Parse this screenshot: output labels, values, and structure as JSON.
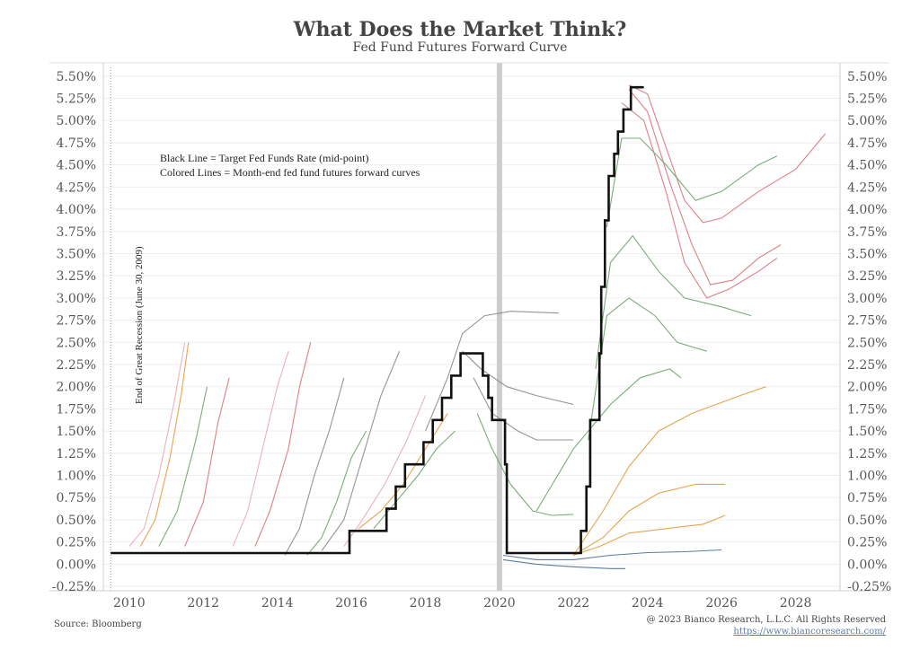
{
  "header": {
    "title": "What Does the Market Think?",
    "subtitle": "Fed Fund Futures Forward Curve"
  },
  "annotations": {
    "legend_line1": "Black Line = Target Fed Funds Rate (mid-point)",
    "legend_line2": "Colored Lines = Month-end fed fund futures forward curves",
    "recession_label": "End of Great Recession (June 30, 2009)"
  },
  "footer": {
    "source": "Source: Bloomberg",
    "copyright": "@ 2023 Bianco Research, L.L.C. All Rights Reserved",
    "link": "https://www.biancoresearch.com/"
  },
  "colors": {
    "target_line": "#111111",
    "red_curves": "#d9727a",
    "green_curves": "#6aa36a",
    "orange_curves": "#e39a3e",
    "blue_curves": "#4a6f95",
    "pink_curves": "#e8a9b6",
    "gray_curves": "#8a8a8a",
    "covid_band": "#cccccc"
  },
  "chart_data": {
    "type": "line",
    "title": "What Does the Market Think?",
    "subtitle": "Fed Fund Futures Forward Curve",
    "xlim": [
      2009.3,
      2029.2
    ],
    "ylim": [
      -0.3,
      5.65
    ],
    "x_ticks": [
      2010,
      2012,
      2014,
      2016,
      2018,
      2020,
      2022,
      2024,
      2026,
      2028
    ],
    "y_ticks": [
      -0.25,
      0,
      0.25,
      0.5,
      0.75,
      1.0,
      1.25,
      1.5,
      1.75,
      2.0,
      2.25,
      2.5,
      2.75,
      3.0,
      3.25,
      3.5,
      3.75,
      4.0,
      4.25,
      4.5,
      4.75,
      5.0,
      5.25,
      5.5
    ],
    "y_tick_labels": [
      "-0.25%",
      "0.00%",
      "0.25%",
      "0.50%",
      "0.75%",
      "1.00%",
      "1.25%",
      "1.50%",
      "1.75%",
      "2.00%",
      "2.25%",
      "2.50%",
      "2.75%",
      "3.00%",
      "3.25%",
      "3.50%",
      "3.75%",
      "4.00%",
      "4.25%",
      "4.50%",
      "4.75%",
      "5.00%",
      "5.25%",
      "5.50%"
    ],
    "vertical_markers": [
      {
        "x": 2009.5,
        "style": "dotted",
        "label": "End of Great Recession (June 30, 2009)"
      },
      {
        "x": 2020.0,
        "style": "band"
      }
    ],
    "target_rate": {
      "name": "Target Fed Funds Rate (mid-point)",
      "points": [
        [
          2009.5,
          0.125
        ],
        [
          2015.95,
          0.125
        ],
        [
          2015.95,
          0.375
        ],
        [
          2016.95,
          0.375
        ],
        [
          2016.95,
          0.625
        ],
        [
          2017.2,
          0.625
        ],
        [
          2017.2,
          0.875
        ],
        [
          2017.45,
          0.875
        ],
        [
          2017.45,
          1.125
        ],
        [
          2017.95,
          1.125
        ],
        [
          2017.95,
          1.375
        ],
        [
          2018.2,
          1.375
        ],
        [
          2018.2,
          1.625
        ],
        [
          2018.45,
          1.625
        ],
        [
          2018.45,
          1.875
        ],
        [
          2018.7,
          1.875
        ],
        [
          2018.7,
          2.125
        ],
        [
          2018.95,
          2.125
        ],
        [
          2018.95,
          2.375
        ],
        [
          2019.55,
          2.375
        ],
        [
          2019.55,
          2.125
        ],
        [
          2019.7,
          2.125
        ],
        [
          2019.7,
          1.875
        ],
        [
          2019.8,
          1.875
        ],
        [
          2019.8,
          1.625
        ],
        [
          2020.15,
          1.625
        ],
        [
          2020.15,
          1.125
        ],
        [
          2020.2,
          1.125
        ],
        [
          2020.2,
          0.125
        ],
        [
          2022.2,
          0.125
        ],
        [
          2022.2,
          0.375
        ],
        [
          2022.35,
          0.375
        ],
        [
          2022.35,
          0.875
        ],
        [
          2022.45,
          0.875
        ],
        [
          2022.45,
          1.625
        ],
        [
          2022.7,
          1.625
        ],
        [
          2022.7,
          2.375
        ],
        [
          2022.75,
          2.375
        ],
        [
          2022.75,
          3.125
        ],
        [
          2022.85,
          3.125
        ],
        [
          2022.85,
          3.875
        ],
        [
          2022.95,
          3.875
        ],
        [
          2022.95,
          4.375
        ],
        [
          2023.1,
          4.375
        ],
        [
          2023.1,
          4.625
        ],
        [
          2023.2,
          4.625
        ],
        [
          2023.2,
          4.875
        ],
        [
          2023.35,
          4.875
        ],
        [
          2023.35,
          5.125
        ],
        [
          2023.55,
          5.125
        ],
        [
          2023.55,
          5.375
        ],
        [
          2023.9,
          5.375
        ]
      ]
    },
    "forward_curves_sample": [
      {
        "color": "red",
        "points": [
          [
            2023.5,
            5.4
          ],
          [
            2024.0,
            5.3
          ],
          [
            2024.5,
            4.7
          ],
          [
            2025.0,
            4.1
          ],
          [
            2025.5,
            3.85
          ],
          [
            2026.0,
            3.9
          ],
          [
            2027.0,
            4.2
          ],
          [
            2028.0,
            4.45
          ],
          [
            2028.8,
            4.85
          ]
        ]
      },
      {
        "color": "red",
        "points": [
          [
            2023.5,
            5.35
          ],
          [
            2024.0,
            5.1
          ],
          [
            2024.6,
            4.3
          ],
          [
            2025.2,
            3.6
          ],
          [
            2025.7,
            3.15
          ],
          [
            2026.3,
            3.2
          ],
          [
            2027.0,
            3.45
          ],
          [
            2027.6,
            3.6
          ]
        ]
      },
      {
        "color": "red",
        "points": [
          [
            2023.3,
            5.2
          ],
          [
            2023.9,
            5.0
          ],
          [
            2024.5,
            4.2
          ],
          [
            2025.0,
            3.4
          ],
          [
            2025.6,
            3.0
          ],
          [
            2026.2,
            3.1
          ],
          [
            2027.0,
            3.3
          ],
          [
            2027.5,
            3.45
          ]
        ]
      },
      {
        "color": "green",
        "points": [
          [
            2022.9,
            3.8
          ],
          [
            2023.3,
            4.8
          ],
          [
            2023.8,
            4.8
          ],
          [
            2024.5,
            4.5
          ],
          [
            2025.3,
            4.1
          ],
          [
            2026.0,
            4.2
          ],
          [
            2027.0,
            4.5
          ],
          [
            2027.5,
            4.6
          ]
        ]
      },
      {
        "color": "green",
        "points": [
          [
            2022.6,
            2.2
          ],
          [
            2023.0,
            3.4
          ],
          [
            2023.6,
            3.7
          ],
          [
            2024.3,
            3.3
          ],
          [
            2025.0,
            3.0
          ],
          [
            2026.0,
            2.9
          ],
          [
            2026.8,
            2.8
          ]
        ]
      },
      {
        "color": "green",
        "points": [
          [
            2022.4,
            1.4
          ],
          [
            2022.9,
            2.8
          ],
          [
            2023.5,
            3.0
          ],
          [
            2024.2,
            2.8
          ],
          [
            2024.8,
            2.5
          ],
          [
            2025.6,
            2.4
          ]
        ]
      },
      {
        "color": "green",
        "points": [
          [
            2021.0,
            0.6
          ],
          [
            2022.0,
            1.3
          ],
          [
            2023.0,
            1.8
          ],
          [
            2023.8,
            2.1
          ],
          [
            2024.6,
            2.2
          ],
          [
            2024.9,
            2.1
          ]
        ]
      },
      {
        "color": "orange",
        "points": [
          [
            2022.0,
            0.1
          ],
          [
            2022.8,
            0.6
          ],
          [
            2023.5,
            1.1
          ],
          [
            2024.3,
            1.5
          ],
          [
            2025.2,
            1.7
          ],
          [
            2026.5,
            1.9
          ],
          [
            2027.2,
            2.0
          ]
        ]
      },
      {
        "color": "orange",
        "points": [
          [
            2022.0,
            0.1
          ],
          [
            2022.8,
            0.3
          ],
          [
            2023.5,
            0.6
          ],
          [
            2024.3,
            0.8
          ],
          [
            2025.3,
            0.9
          ],
          [
            2026.1,
            0.9
          ]
        ]
      },
      {
        "color": "orange",
        "points": [
          [
            2022.0,
            0.1
          ],
          [
            2022.7,
            0.2
          ],
          [
            2023.5,
            0.35
          ],
          [
            2024.5,
            0.4
          ],
          [
            2025.5,
            0.45
          ],
          [
            2026.1,
            0.55
          ]
        ]
      },
      {
        "color": "blue",
        "points": [
          [
            2020.1,
            0.1
          ],
          [
            2021.0,
            0.05
          ],
          [
            2022.0,
            0.05
          ],
          [
            2023.0,
            0.1
          ],
          [
            2024.0,
            0.13
          ],
          [
            2025.0,
            0.14
          ],
          [
            2026.0,
            0.16
          ]
        ]
      },
      {
        "color": "blue",
        "points": [
          [
            2020.1,
            0.05
          ],
          [
            2021.0,
            0.0
          ],
          [
            2022.0,
            -0.03
          ],
          [
            2023.0,
            -0.05
          ],
          [
            2023.4,
            -0.05
          ]
        ]
      },
      {
        "color": "gray",
        "points": [
          [
            2018.0,
            1.5
          ],
          [
            2018.6,
            2.1
          ],
          [
            2019.0,
            2.6
          ],
          [
            2019.6,
            2.8
          ],
          [
            2020.3,
            2.85
          ],
          [
            2021.6,
            2.83
          ]
        ]
      },
      {
        "color": "gray",
        "points": [
          [
            2019.0,
            2.4
          ],
          [
            2019.5,
            2.2
          ],
          [
            2020.2,
            2.0
          ],
          [
            2021.0,
            1.9
          ],
          [
            2022.0,
            1.8
          ]
        ]
      },
      {
        "color": "gray",
        "points": [
          [
            2019.3,
            2.1
          ],
          [
            2019.8,
            1.7
          ],
          [
            2020.5,
            1.5
          ],
          [
            2021.0,
            1.4
          ],
          [
            2022.0,
            1.4
          ]
        ]
      },
      {
        "color": "green",
        "points": [
          [
            2019.4,
            1.7
          ],
          [
            2019.8,
            1.3
          ],
          [
            2020.3,
            0.9
          ],
          [
            2020.9,
            0.6
          ],
          [
            2021.4,
            0.55
          ],
          [
            2022.0,
            0.56
          ]
        ]
      },
      {
        "color": "pink",
        "points": [
          [
            2010.0,
            0.2
          ],
          [
            2010.4,
            0.4
          ],
          [
            2010.8,
            1.0
          ],
          [
            2011.2,
            1.8
          ],
          [
            2011.5,
            2.5
          ]
        ]
      },
      {
        "color": "orange",
        "points": [
          [
            2010.3,
            0.2
          ],
          [
            2010.7,
            0.5
          ],
          [
            2011.1,
            1.2
          ],
          [
            2011.4,
            1.9
          ],
          [
            2011.6,
            2.5
          ]
        ]
      },
      {
        "color": "green",
        "points": [
          [
            2010.8,
            0.2
          ],
          [
            2011.3,
            0.6
          ],
          [
            2011.8,
            1.4
          ],
          [
            2012.1,
            2.0
          ]
        ]
      },
      {
        "color": "red",
        "points": [
          [
            2011.5,
            0.2
          ],
          [
            2012.0,
            0.7
          ],
          [
            2012.4,
            1.6
          ],
          [
            2012.7,
            2.1
          ]
        ]
      },
      {
        "color": "pink",
        "points": [
          [
            2012.8,
            0.2
          ],
          [
            2013.2,
            0.6
          ],
          [
            2013.6,
            1.3
          ],
          [
            2014.0,
            2.0
          ],
          [
            2014.3,
            2.4
          ]
        ]
      },
      {
        "color": "red",
        "points": [
          [
            2013.4,
            0.2
          ],
          [
            2013.8,
            0.6
          ],
          [
            2014.3,
            1.3
          ],
          [
            2014.6,
            2.0
          ],
          [
            2014.9,
            2.5
          ]
        ]
      },
      {
        "color": "gray",
        "points": [
          [
            2014.2,
            0.1
          ],
          [
            2014.6,
            0.4
          ],
          [
            2015.0,
            1.0
          ],
          [
            2015.4,
            1.5
          ],
          [
            2015.8,
            2.1
          ]
        ]
      },
      {
        "color": "green",
        "points": [
          [
            2014.8,
            0.1
          ],
          [
            2015.2,
            0.3
          ],
          [
            2015.6,
            0.7
          ],
          [
            2016.0,
            1.2
          ],
          [
            2016.4,
            1.5
          ]
        ]
      },
      {
        "color": "gray",
        "points": [
          [
            2015.2,
            0.15
          ],
          [
            2015.8,
            0.5
          ],
          [
            2016.3,
            1.2
          ],
          [
            2016.8,
            1.9
          ],
          [
            2017.3,
            2.4
          ]
        ]
      },
      {
        "color": "pink",
        "points": [
          [
            2015.8,
            0.2
          ],
          [
            2016.3,
            0.5
          ],
          [
            2016.9,
            0.9
          ],
          [
            2017.5,
            1.4
          ],
          [
            2018.0,
            1.9
          ]
        ]
      },
      {
        "color": "orange",
        "points": [
          [
            2016.2,
            0.4
          ],
          [
            2016.8,
            0.6
          ],
          [
            2017.4,
            0.9
          ],
          [
            2018.0,
            1.3
          ],
          [
            2018.6,
            1.7
          ]
        ]
      },
      {
        "color": "green",
        "points": [
          [
            2016.6,
            0.4
          ],
          [
            2017.2,
            0.7
          ],
          [
            2017.8,
            1.0
          ],
          [
            2018.3,
            1.3
          ],
          [
            2018.8,
            1.5
          ]
        ]
      }
    ]
  }
}
